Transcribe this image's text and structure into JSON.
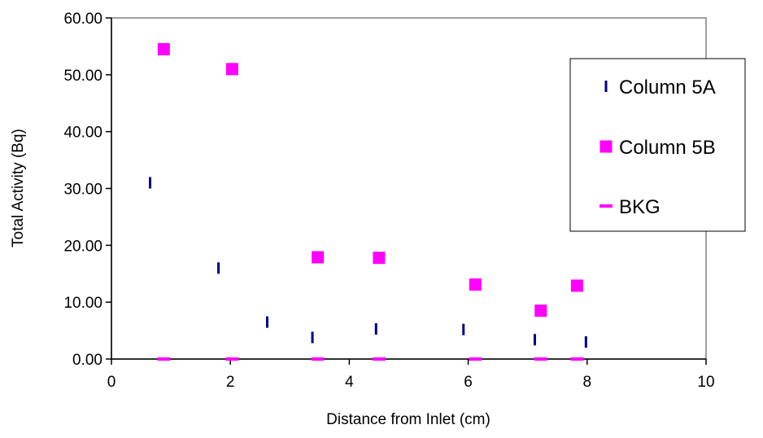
{
  "chart_data": {
    "type": "scatter",
    "title": "",
    "xlabel": "Distance from Inlet  (cm)",
    "ylabel": "Total Activity (Bq)",
    "xlim": [
      0,
      10
    ],
    "ylim": [
      0,
      60
    ],
    "xticks": [
      "0",
      "2",
      "4",
      "6",
      "8",
      "10"
    ],
    "yticks": [
      "0.00",
      "10.00",
      "20.00",
      "30.00",
      "40.00",
      "50.00",
      "60.00"
    ],
    "grid": false,
    "legend_position": "right",
    "series": [
      {
        "name": "Column 5A",
        "color": "#000080",
        "marker": "vertical-bar",
        "points": [
          [
            0.65,
            31.0
          ],
          [
            1.8,
            16.0
          ],
          [
            2.62,
            6.5
          ],
          [
            3.38,
            3.8
          ],
          [
            4.45,
            5.3
          ],
          [
            5.92,
            5.2
          ],
          [
            7.12,
            3.4
          ],
          [
            7.98,
            3.0
          ]
        ]
      },
      {
        "name": "Column 5B",
        "color": "#ff00ff",
        "marker": "square",
        "points": [
          [
            0.88,
            54.5
          ],
          [
            2.03,
            51.0
          ],
          [
            3.47,
            17.9
          ],
          [
            4.5,
            17.8
          ],
          [
            6.12,
            13.1
          ],
          [
            7.22,
            8.5
          ],
          [
            7.83,
            12.9
          ]
        ]
      },
      {
        "name": "BKG",
        "color": "#ff00ff",
        "marker": "horizontal-dash",
        "points": [
          [
            0.88,
            0.0
          ],
          [
            2.03,
            0.0
          ],
          [
            3.47,
            0.0
          ],
          [
            4.5,
            0.0
          ],
          [
            6.12,
            0.0
          ],
          [
            7.22,
            0.0
          ],
          [
            7.83,
            0.0
          ]
        ]
      }
    ]
  }
}
